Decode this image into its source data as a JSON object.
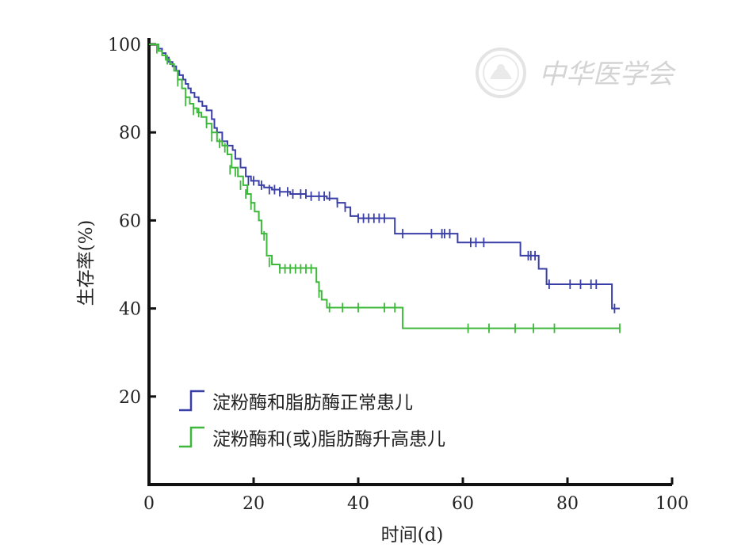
{
  "chart_data": {
    "type": "line",
    "xlabel": "时间(d)",
    "ylabel": "生存率(%)",
    "xlim": [
      0,
      100
    ],
    "ylim": [
      0,
      100
    ],
    "x_ticks": [
      "0",
      "20",
      "40",
      "60",
      "80",
      "100"
    ],
    "y_ticks": [
      "20",
      "40",
      "60",
      "80",
      "100"
    ],
    "grid": false,
    "legend": "bottom-left",
    "series": [
      {
        "name": "淀粉酶和脂肪酶正常患儿",
        "color": "#3a3fa8",
        "steps": [
          [
            0,
            100
          ],
          [
            1.8,
            99
          ],
          [
            2.5,
            98
          ],
          [
            3.2,
            97
          ],
          [
            3.8,
            96
          ],
          [
            4.5,
            95
          ],
          [
            5.2,
            94
          ],
          [
            5.8,
            93
          ],
          [
            6.5,
            92
          ],
          [
            7,
            91
          ],
          [
            7.5,
            90
          ],
          [
            8,
            89
          ],
          [
            8.7,
            88
          ],
          [
            9.5,
            87
          ],
          [
            10.2,
            86
          ],
          [
            11,
            85
          ],
          [
            12,
            83
          ],
          [
            12.5,
            81
          ],
          [
            13,
            80
          ],
          [
            14,
            78
          ],
          [
            15,
            77
          ],
          [
            16,
            76
          ],
          [
            16.5,
            74
          ],
          [
            17.5,
            72
          ],
          [
            18.5,
            70
          ],
          [
            19.5,
            69
          ],
          [
            21,
            68
          ],
          [
            22,
            67.5
          ],
          [
            23.5,
            67
          ],
          [
            25,
            66.5
          ],
          [
            27,
            66
          ],
          [
            30,
            65.5
          ],
          [
            34,
            65
          ],
          [
            36,
            64
          ],
          [
            37.5,
            63
          ],
          [
            38.5,
            61
          ],
          [
            40,
            60.5
          ],
          [
            47,
            57
          ],
          [
            59,
            55
          ],
          [
            71,
            52
          ],
          [
            74.5,
            49
          ],
          [
            76,
            45.5
          ],
          [
            88.5,
            40
          ],
          [
            90,
            40
          ]
        ],
        "censored": [
          [
            19,
            69
          ],
          [
            20,
            69
          ],
          [
            21.5,
            68
          ],
          [
            23,
            67
          ],
          [
            24,
            67
          ],
          [
            25,
            66.5
          ],
          [
            26.5,
            66.5
          ],
          [
            27.5,
            66
          ],
          [
            29,
            66
          ],
          [
            30,
            66
          ],
          [
            31,
            65.5
          ],
          [
            32.5,
            65.5
          ],
          [
            33.5,
            65.5
          ],
          [
            34.5,
            65.5
          ],
          [
            36,
            64
          ],
          [
            37.5,
            63
          ],
          [
            40,
            60.5
          ],
          [
            41,
            60.5
          ],
          [
            42,
            60.5
          ],
          [
            43,
            60.5
          ],
          [
            44,
            60.5
          ],
          [
            45,
            60.5
          ],
          [
            48.5,
            57
          ],
          [
            54,
            57
          ],
          [
            56,
            57
          ],
          [
            56.5,
            57
          ],
          [
            57.5,
            57
          ],
          [
            61.5,
            55
          ],
          [
            62.5,
            55
          ],
          [
            64,
            55
          ],
          [
            72.5,
            52
          ],
          [
            73,
            52
          ],
          [
            73.8,
            52
          ],
          [
            76.5,
            45.5
          ],
          [
            80.5,
            45.5
          ],
          [
            82.5,
            45.5
          ],
          [
            84.5,
            45.5
          ],
          [
            85.5,
            45.5
          ],
          [
            89,
            40
          ]
        ]
      },
      {
        "name": "淀粉酶和(或)脂肪酶升高患儿",
        "color": "#3db83a",
        "steps": [
          [
            0,
            100
          ],
          [
            1.8,
            98.5
          ],
          [
            2.5,
            97.5
          ],
          [
            3.2,
            96.5
          ],
          [
            4,
            95.5
          ],
          [
            4.8,
            94
          ],
          [
            5.5,
            92
          ],
          [
            6.3,
            90
          ],
          [
            7,
            88
          ],
          [
            7.8,
            86.5
          ],
          [
            8.5,
            85.5
          ],
          [
            9.2,
            84.5
          ],
          [
            10,
            83.5
          ],
          [
            11,
            82
          ],
          [
            12,
            80
          ],
          [
            13,
            78
          ],
          [
            14,
            77
          ],
          [
            15,
            75
          ],
          [
            15.8,
            72
          ],
          [
            17,
            70
          ],
          [
            18,
            68
          ],
          [
            18.8,
            66
          ],
          [
            19.5,
            64
          ],
          [
            20.2,
            62
          ],
          [
            21,
            60
          ],
          [
            21.5,
            57
          ],
          [
            22.5,
            52
          ],
          [
            23.5,
            50
          ],
          [
            25,
            49.2
          ],
          [
            32,
            46
          ],
          [
            32.5,
            44
          ],
          [
            33,
            42
          ],
          [
            34,
            40.2
          ],
          [
            48.5,
            35.5
          ],
          [
            90,
            35.5
          ]
        ],
        "censored": [
          [
            1.5,
            99
          ],
          [
            3.5,
            96.5
          ],
          [
            5.5,
            91.5
          ],
          [
            7,
            87
          ],
          [
            8.5,
            85
          ],
          [
            9.5,
            84.5
          ],
          [
            11,
            82
          ],
          [
            12,
            79
          ],
          [
            13.5,
            77.5
          ],
          [
            14.5,
            76.5
          ],
          [
            15.5,
            71.5
          ],
          [
            16.5,
            71
          ],
          [
            17.5,
            68
          ],
          [
            18.5,
            66
          ],
          [
            19.5,
            63.5
          ],
          [
            21,
            61
          ],
          [
            22,
            56.5
          ],
          [
            23,
            50.5
          ],
          [
            25,
            49
          ],
          [
            26,
            49
          ],
          [
            27,
            49
          ],
          [
            28,
            49
          ],
          [
            29,
            49
          ],
          [
            30,
            49
          ],
          [
            31,
            49
          ],
          [
            32.5,
            43.5
          ],
          [
            34.5,
            40.2
          ],
          [
            37,
            40.2
          ],
          [
            40,
            40.2
          ],
          [
            45,
            40.2
          ],
          [
            47,
            40.2
          ],
          [
            61,
            35.5
          ],
          [
            65,
            35.5
          ],
          [
            70,
            35.5
          ],
          [
            73.5,
            35.5
          ],
          [
            77.5,
            35.5
          ],
          [
            90,
            35.5
          ]
        ]
      }
    ]
  },
  "watermark": {
    "text": "中华医学会"
  }
}
